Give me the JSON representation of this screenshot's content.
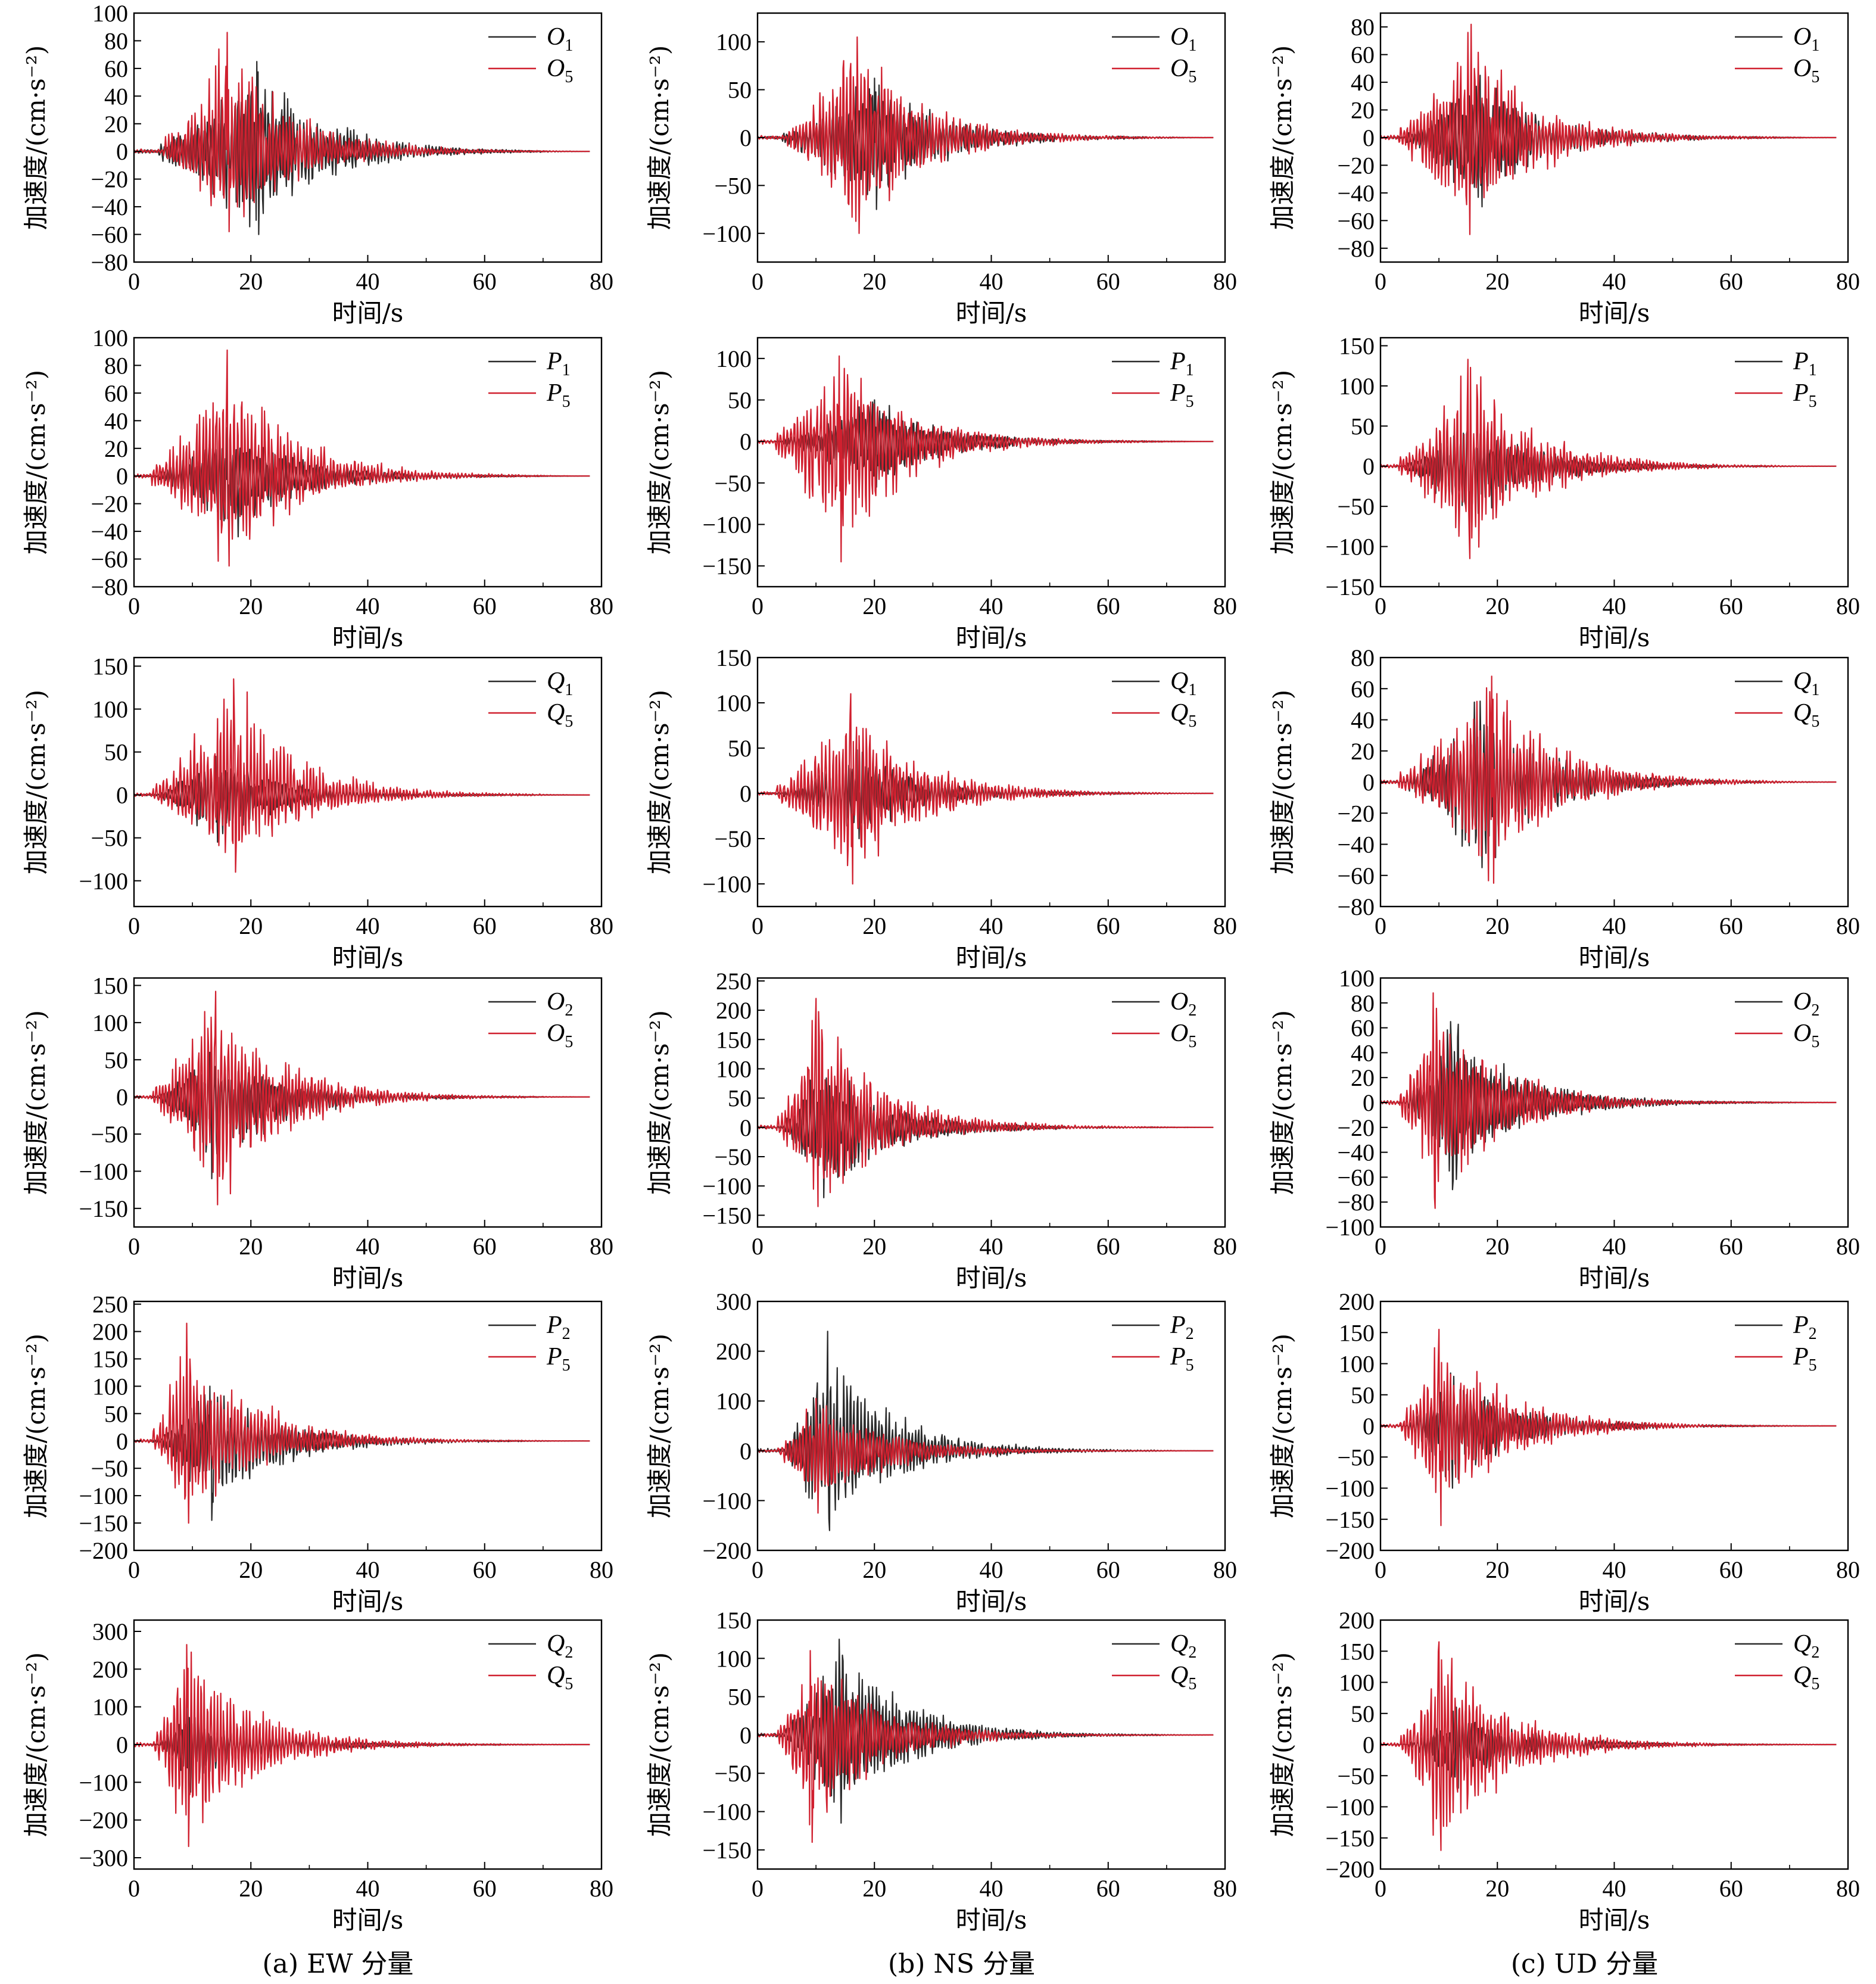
{
  "chart_data": {
    "type": "line",
    "x": {
      "label": "时间/s",
      "lim": [
        0,
        80
      ],
      "ticks": [
        "0",
        "20",
        "40",
        "60",
        "80"
      ]
    },
    "y_label": "加速度/(cm·s⁻²)",
    "colors": {
      "series1": "#2b2b2b",
      "series2": "#d0202f"
    },
    "columns": [
      {
        "caption": "(a) EW 分量",
        "component": "EW"
      },
      {
        "caption": "(b) NS 分量",
        "component": "NS"
      },
      {
        "caption": "(c) UD 分量",
        "component": "UD"
      }
    ],
    "panels": [
      {
        "row": 0,
        "col": 0,
        "ylim": [
          -80,
          100
        ],
        "yticks": [
          "−80",
          "−60",
          "−40",
          "−20",
          "0",
          "20",
          "40",
          "60",
          "80",
          "100"
        ],
        "series": [
          {
            "base": "O",
            "sub": "1",
            "peak_pos": 65,
            "peak_neg": -60,
            "t_peak": 21
          },
          {
            "base": "O",
            "sub": "5",
            "peak_pos": 86,
            "peak_neg": -58,
            "t_peak": 16
          }
        ]
      },
      {
        "row": 0,
        "col": 1,
        "ylim": [
          -130,
          130
        ],
        "yticks": [
          "−100",
          "−50",
          "0",
          "50",
          "100"
        ],
        "series": [
          {
            "base": "O",
            "sub": "1",
            "peak_pos": 62,
            "peak_neg": -75,
            "t_peak": 20
          },
          {
            "base": "O",
            "sub": "5",
            "peak_pos": 105,
            "peak_neg": -100,
            "t_peak": 17
          }
        ]
      },
      {
        "row": 0,
        "col": 2,
        "ylim": [
          -90,
          90
        ],
        "yticks": [
          "−80",
          "−60",
          "−40",
          "−20",
          "0",
          "20",
          "40",
          "60",
          "80"
        ],
        "series": [
          {
            "base": "O",
            "sub": "1",
            "peak_pos": 45,
            "peak_neg": -50,
            "t_peak": 17
          },
          {
            "base": "O",
            "sub": "5",
            "peak_pos": 76,
            "peak_neg": -70,
            "t_peak": 15
          }
        ]
      },
      {
        "row": 1,
        "col": 0,
        "ylim": [
          -80,
          100
        ],
        "yticks": [
          "−80",
          "−60",
          "−40",
          "−20",
          "0",
          "20",
          "40",
          "60",
          "80",
          "100"
        ],
        "series": [
          {
            "base": "P",
            "sub": "1",
            "peak_pos": 35,
            "peak_neg": -45,
            "t_peak": 16
          },
          {
            "base": "P",
            "sub": "5",
            "peak_pos": 91,
            "peak_neg": -65,
            "t_peak": 16
          }
        ]
      },
      {
        "row": 1,
        "col": 1,
        "ylim": [
          -175,
          125
        ],
        "yticks": [
          "−150",
          "−100",
          "−50",
          "0",
          "50",
          "100"
        ],
        "series": [
          {
            "base": "P",
            "sub": "1",
            "peak_pos": 50,
            "peak_neg": -55,
            "t_peak": 20
          },
          {
            "base": "P",
            "sub": "5",
            "peak_pos": 103,
            "peak_neg": -145,
            "t_peak": 14
          }
        ]
      },
      {
        "row": 1,
        "col": 2,
        "ylim": [
          -150,
          160
        ],
        "yticks": [
          "−150",
          "−100",
          "−50",
          "0",
          "50",
          "100",
          "150"
        ],
        "series": [
          {
            "base": "P",
            "sub": "1",
            "peak_pos": 60,
            "peak_neg": -70,
            "t_peak": 15
          },
          {
            "base": "P",
            "sub": "5",
            "peak_pos": 133,
            "peak_neg": -115,
            "t_peak": 15
          }
        ]
      },
      {
        "row": 2,
        "col": 0,
        "ylim": [
          -130,
          160
        ],
        "yticks": [
          "−100",
          "−50",
          "0",
          "50",
          "100",
          "150"
        ],
        "series": [
          {
            "base": "Q",
            "sub": "1",
            "peak_pos": 45,
            "peak_neg": -55,
            "t_peak": 14
          },
          {
            "base": "Q",
            "sub": "5",
            "peak_pos": 135,
            "peak_neg": -90,
            "t_peak": 17
          }
        ]
      },
      {
        "row": 2,
        "col": 1,
        "ylim": [
          -125,
          150
        ],
        "yticks": [
          "−100",
          "−50",
          "0",
          "50",
          "100",
          "150"
        ],
        "series": [
          {
            "base": "Q",
            "sub": "1",
            "peak_pos": 48,
            "peak_neg": -50,
            "t_peak": 17
          },
          {
            "base": "Q",
            "sub": "5",
            "peak_pos": 110,
            "peak_neg": -100,
            "t_peak": 16
          }
        ]
      },
      {
        "row": 2,
        "col": 2,
        "ylim": [
          -80,
          80
        ],
        "yticks": [
          "−80",
          "−60",
          "−40",
          "−20",
          "0",
          "20",
          "40",
          "60",
          "80"
        ],
        "series": [
          {
            "base": "Q",
            "sub": "1",
            "peak_pos": 52,
            "peak_neg": -55,
            "t_peak": 17
          },
          {
            "base": "Q",
            "sub": "5",
            "peak_pos": 68,
            "peak_neg": -65,
            "t_peak": 19
          }
        ]
      },
      {
        "row": 3,
        "col": 0,
        "ylim": [
          -175,
          160
        ],
        "yticks": [
          "−150",
          "−100",
          "−50",
          "0",
          "50",
          "100",
          "150"
        ],
        "series": [
          {
            "base": "O",
            "sub": "2",
            "peak_pos": 60,
            "peak_neg": -110,
            "t_peak": 13
          },
          {
            "base": "O",
            "sub": "5",
            "peak_pos": 142,
            "peak_neg": -145,
            "t_peak": 14
          }
        ]
      },
      {
        "row": 3,
        "col": 1,
        "ylim": [
          -170,
          255
        ],
        "yticks": [
          "−150",
          "−100",
          "−50",
          "0",
          "50",
          "100",
          "150",
          "200",
          "250"
        ],
        "series": [
          {
            "base": "O",
            "sub": "2",
            "peak_pos": 110,
            "peak_neg": -120,
            "t_peak": 11
          },
          {
            "base": "O",
            "sub": "5",
            "peak_pos": 220,
            "peak_neg": -135,
            "t_peak": 10
          }
        ]
      },
      {
        "row": 3,
        "col": 2,
        "ylim": [
          -100,
          100
        ],
        "yticks": [
          "−100",
          "−80",
          "−60",
          "−40",
          "−20",
          "0",
          "20",
          "40",
          "60",
          "80",
          "100"
        ],
        "series": [
          {
            "base": "O",
            "sub": "2",
            "peak_pos": 65,
            "peak_neg": -70,
            "t_peak": 12
          },
          {
            "base": "O",
            "sub": "5",
            "peak_pos": 88,
            "peak_neg": -85,
            "t_peak": 9
          }
        ]
      },
      {
        "row": 4,
        "col": 0,
        "ylim": [
          -200,
          255
        ],
        "yticks": [
          "−200",
          "−150",
          "−100",
          "−50",
          "0",
          "50",
          "100",
          "150",
          "200",
          "250"
        ],
        "series": [
          {
            "base": "P",
            "sub": "2",
            "peak_pos": 100,
            "peak_neg": -145,
            "t_peak": 13
          },
          {
            "base": "P",
            "sub": "5",
            "peak_pos": 215,
            "peak_neg": -150,
            "t_peak": 9
          }
        ]
      },
      {
        "row": 4,
        "col": 1,
        "ylim": [
          -200,
          300
        ],
        "yticks": [
          "−200",
          "−100",
          "0",
          "100",
          "200",
          "300"
        ],
        "series": [
          {
            "base": "P",
            "sub": "2",
            "peak_pos": 240,
            "peak_neg": -160,
            "t_peak": 12
          },
          {
            "base": "P",
            "sub": "5",
            "peak_pos": 105,
            "peak_neg": -125,
            "t_peak": 10
          }
        ]
      },
      {
        "row": 4,
        "col": 2,
        "ylim": [
          -200,
          200
        ],
        "yticks": [
          "−200",
          "−150",
          "−100",
          "−50",
          "0",
          "50",
          "100",
          "150",
          "200"
        ],
        "series": [
          {
            "base": "P",
            "sub": "2",
            "peak_pos": 85,
            "peak_neg": -100,
            "t_peak": 12
          },
          {
            "base": "P",
            "sub": "5",
            "peak_pos": 155,
            "peak_neg": -160,
            "t_peak": 10
          }
        ]
      },
      {
        "row": 5,
        "col": 0,
        "ylim": [
          -330,
          330
        ],
        "yticks": [
          "−300",
          "−200",
          "−100",
          "0",
          "100",
          "200",
          "300"
        ],
        "series": [
          {
            "base": "Q",
            "sub": "2",
            "peak_pos": 100,
            "peak_neg": -140,
            "t_peak": 9
          },
          {
            "base": "Q",
            "sub": "5",
            "peak_pos": 265,
            "peak_neg": -270,
            "t_peak": 9
          }
        ]
      },
      {
        "row": 5,
        "col": 1,
        "ylim": [
          -175,
          150
        ],
        "yticks": [
          "−150",
          "−100",
          "−50",
          "0",
          "50",
          "100",
          "150"
        ],
        "series": [
          {
            "base": "Q",
            "sub": "2",
            "peak_pos": 125,
            "peak_neg": -115,
            "t_peak": 14
          },
          {
            "base": "Q",
            "sub": "5",
            "peak_pos": 110,
            "peak_neg": -140,
            "t_peak": 9
          }
        ]
      },
      {
        "row": 5,
        "col": 2,
        "ylim": [
          -200,
          200
        ],
        "yticks": [
          "−200",
          "−150",
          "−100",
          "−50",
          "0",
          "50",
          "100",
          "150",
          "200"
        ],
        "series": [
          {
            "base": "Q",
            "sub": "2",
            "peak_pos": 60,
            "peak_neg": -70,
            "t_peak": 13
          },
          {
            "base": "Q",
            "sub": "5",
            "peak_pos": 165,
            "peak_neg": -170,
            "t_peak": 10
          }
        ]
      }
    ]
  }
}
